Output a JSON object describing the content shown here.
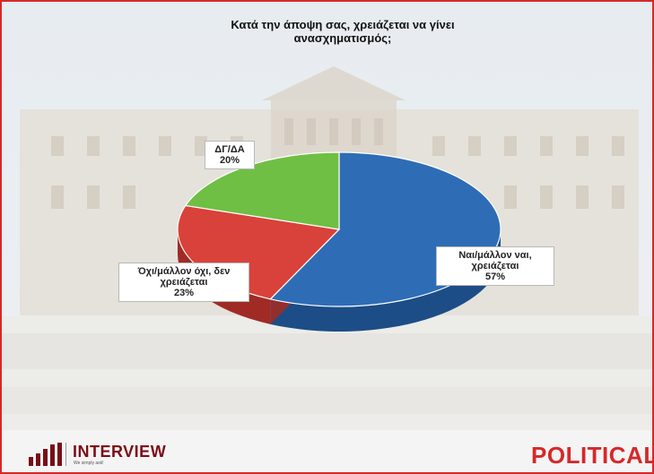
{
  "chart_data": {
    "type": "pie",
    "title_lines": [
      "Κατά την άποψη σας, χρειάζεται να γίνει",
      "ανασχηματισμός;"
    ],
    "slices": [
      {
        "label_lines": [
          "Ναι/μάλλον ναι,",
          "χρειάζεται"
        ],
        "value_label": "57%",
        "value": 57,
        "color": "#2e6db5",
        "side_color": "#1d4d86"
      },
      {
        "label_lines": [
          "Όχι/μάλλον όχι, δεν",
          "χρειάζεται"
        ],
        "value_label": "23%",
        "value": 23,
        "color": "#d9423a",
        "side_color": "#a02b25"
      },
      {
        "label_lines": [
          "ΔΓ/ΔΑ"
        ],
        "value_label": "20%",
        "value": 20,
        "color": "#6fbf44",
        "side_color": "#4e8f2d"
      }
    ],
    "start_angle_deg": -90,
    "direction": "clockwise",
    "style": "3d"
  },
  "branding": {
    "interview_name": "INTERVIEW",
    "interview_tagline": "We simply ask!",
    "political_name": "POLITICAL",
    "colors": {
      "interview": "#7a0e17",
      "political": "#d62828"
    }
  }
}
